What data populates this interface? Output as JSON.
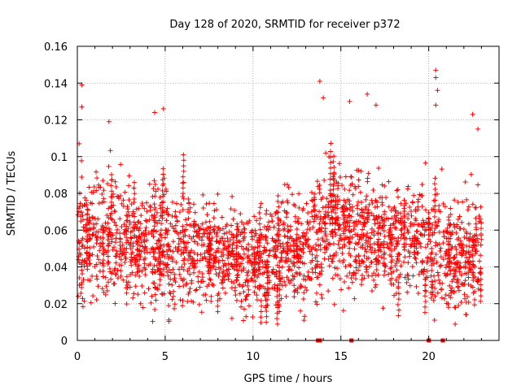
{
  "chart_data": {
    "type": "scatter",
    "title": "Day 128 of 2020, SRMTID for receiver p372",
    "xlabel": "GPS time / hours",
    "ylabel": "SRMTID / TECUs",
    "xlim": [
      0,
      24
    ],
    "ylim": [
      0,
      0.16
    ],
    "xticks": [
      0,
      5,
      10,
      15,
      20
    ],
    "xtick_labels": [
      "0",
      "5",
      "10",
      "15",
      "20"
    ],
    "yticks": [
      0,
      0.02,
      0.04,
      0.06,
      0.08,
      0.1,
      0.12,
      0.14,
      0.16
    ],
    "ytick_labels": [
      "0",
      "0.02",
      "0.04",
      "0.06",
      "0.08",
      "0.1",
      "0.12",
      "0.14",
      "0.16"
    ],
    "grid": true,
    "marker": "plus",
    "color": "#ff0000",
    "outliers": [
      {
        "x": 0.1,
        "y": 0.107
      },
      {
        "x": 0.25,
        "y": 0.139
      },
      {
        "x": 0.25,
        "y": 0.127
      },
      {
        "x": 1.8,
        "y": 0.119
      },
      {
        "x": 4.4,
        "y": 0.124
      },
      {
        "x": 4.9,
        "y": 0.126
      },
      {
        "x": 13.8,
        "y": 0.141
      },
      {
        "x": 14.0,
        "y": 0.132
      },
      {
        "x": 15.5,
        "y": 0.13
      },
      {
        "x": 16.5,
        "y": 0.134
      },
      {
        "x": 17.0,
        "y": 0.128
      },
      {
        "x": 20.4,
        "y": 0.147
      },
      {
        "x": 20.4,
        "y": 0.143
      },
      {
        "x": 20.5,
        "y": 0.136
      },
      {
        "x": 20.4,
        "y": 0.128
      },
      {
        "x": 22.5,
        "y": 0.123
      },
      {
        "x": 22.8,
        "y": 0.115
      },
      {
        "x": 3.6,
        "y": 0.02
      },
      {
        "x": 8.8,
        "y": 0.012
      },
      {
        "x": 9.6,
        "y": 0.013
      },
      {
        "x": 12.9,
        "y": 0.011
      },
      {
        "x": 12.7,
        "y": 0.016
      }
    ],
    "zero_points": [
      {
        "x": 13.7,
        "y": 0
      },
      {
        "x": 13.8,
        "y": 0
      },
      {
        "x": 15.6,
        "y": 0
      },
      {
        "x": 20.0,
        "y": 0
      },
      {
        "x": 20.8,
        "y": 0
      }
    ],
    "trend": {
      "hours": [
        0,
        1,
        2,
        3,
        4,
        5,
        6,
        7,
        8,
        9,
        10,
        11,
        12,
        13,
        14,
        15,
        16,
        17,
        18,
        19,
        20,
        21,
        22,
        23
      ],
      "mean": [
        0.058,
        0.057,
        0.058,
        0.055,
        0.054,
        0.052,
        0.05,
        0.05,
        0.047,
        0.044,
        0.044,
        0.046,
        0.049,
        0.045,
        0.062,
        0.064,
        0.06,
        0.058,
        0.057,
        0.055,
        0.052,
        0.046,
        0.042,
        0.05
      ],
      "spread": [
        0.017,
        0.017,
        0.018,
        0.016,
        0.016,
        0.016,
        0.015,
        0.014,
        0.013,
        0.012,
        0.012,
        0.013,
        0.014,
        0.014,
        0.017,
        0.017,
        0.017,
        0.016,
        0.016,
        0.016,
        0.016,
        0.015,
        0.015,
        0.016
      ]
    },
    "cluster_point_count": 2200,
    "x_end": 23.0
  }
}
